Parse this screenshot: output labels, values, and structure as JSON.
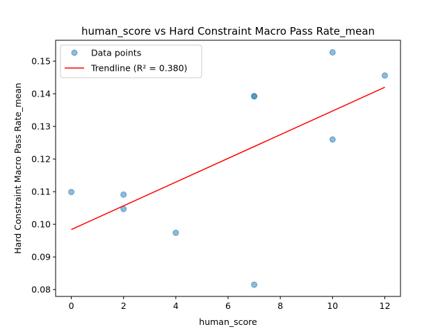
{
  "chart_data": {
    "type": "scatter",
    "title": "human_score vs Hard Constraint Macro Pass Rate_mean",
    "xlabel": "human_score",
    "ylabel": "Hard Constraint Macro Pass Rate_mean",
    "xlim": [
      -0.6,
      12.6
    ],
    "ylim": [
      0.0779,
      0.1564
    ],
    "xticks": [
      0,
      2,
      4,
      6,
      8,
      10,
      12
    ],
    "yticks": [
      0.08,
      0.09,
      0.1,
      0.11,
      0.12,
      0.13,
      0.14,
      0.15
    ],
    "series": [
      {
        "name": "Data points",
        "kind": "scatter",
        "color": "#1f77b4",
        "points": [
          {
            "x": 0,
            "y": 0.1099
          },
          {
            "x": 2,
            "y": 0.1091
          },
          {
            "x": 2,
            "y": 0.1047
          },
          {
            "x": 4,
            "y": 0.0974
          },
          {
            "x": 7,
            "y": 0.1392
          },
          {
            "x": 7,
            "y": 0.1393
          },
          {
            "x": 7,
            "y": 0.0815
          },
          {
            "x": 10,
            "y": 0.1527
          },
          {
            "x": 10,
            "y": 0.126
          },
          {
            "x": 12,
            "y": 0.1456
          }
        ]
      },
      {
        "name": "Trendline (R² = 0.380)",
        "kind": "line",
        "color": "#ff0000",
        "x": [
          0,
          12
        ],
        "y": [
          0.0984,
          0.142
        ]
      }
    ],
    "legend_position": "upper-left",
    "grid": false
  }
}
